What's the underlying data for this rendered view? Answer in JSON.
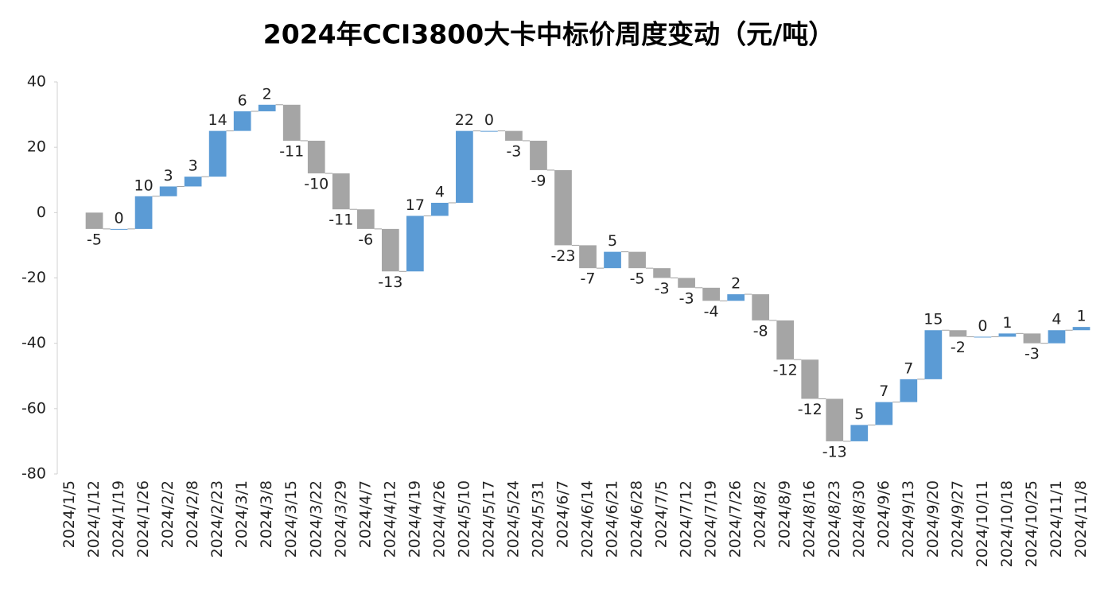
{
  "chart_data": {
    "type": "waterfall",
    "title": "2024年CCI3800大卡中标价周度变动（元/吨）",
    "categories": [
      "2024/1/5",
      "2024/1/12",
      "2024/1/19",
      "2024/1/26",
      "2024/2/2",
      "2024/2/8",
      "2024/2/23",
      "2024/3/1",
      "2024/3/8",
      "2024/3/15",
      "2024/3/22",
      "2024/3/29",
      "2024/4/7",
      "2024/4/12",
      "2024/4/19",
      "2024/4/26",
      "2024/5/10",
      "2024/5/17",
      "2024/5/24",
      "2024/5/31",
      "2024/6/7",
      "2024/6/14",
      "2024/6/21",
      "2024/6/28",
      "2024/7/5",
      "2024/7/12",
      "2024/7/19",
      "2024/7/26",
      "2024/8/2",
      "2024/8/9",
      "2024/8/16",
      "2024/8/23",
      "2024/8/30",
      "2024/9/6",
      "2024/9/13",
      "2024/9/20",
      "2024/9/27",
      "2024/10/11",
      "2024/10/18",
      "2024/10/25",
      "2024/11/1",
      "2024/11/8"
    ],
    "values": [
      null,
      -5,
      0,
      10,
      3,
      3,
      14,
      6,
      2,
      -11,
      -10,
      -11,
      -6,
      -13,
      17,
      4,
      22,
      0,
      -3,
      -9,
      -23,
      -7,
      5,
      -5,
      -3,
      -3,
      -4,
      2,
      -8,
      -12,
      -12,
      -13,
      5,
      7,
      7,
      15,
      -2,
      0,
      1,
      -3,
      4,
      1
    ],
    "increase_color": "#5b9bd5",
    "decrease_color": "#a5a5a5",
    "ylim": [
      -80,
      40
    ],
    "yticks": [
      -80,
      -60,
      -40,
      -20,
      0,
      20,
      40
    ],
    "grid": false
  }
}
